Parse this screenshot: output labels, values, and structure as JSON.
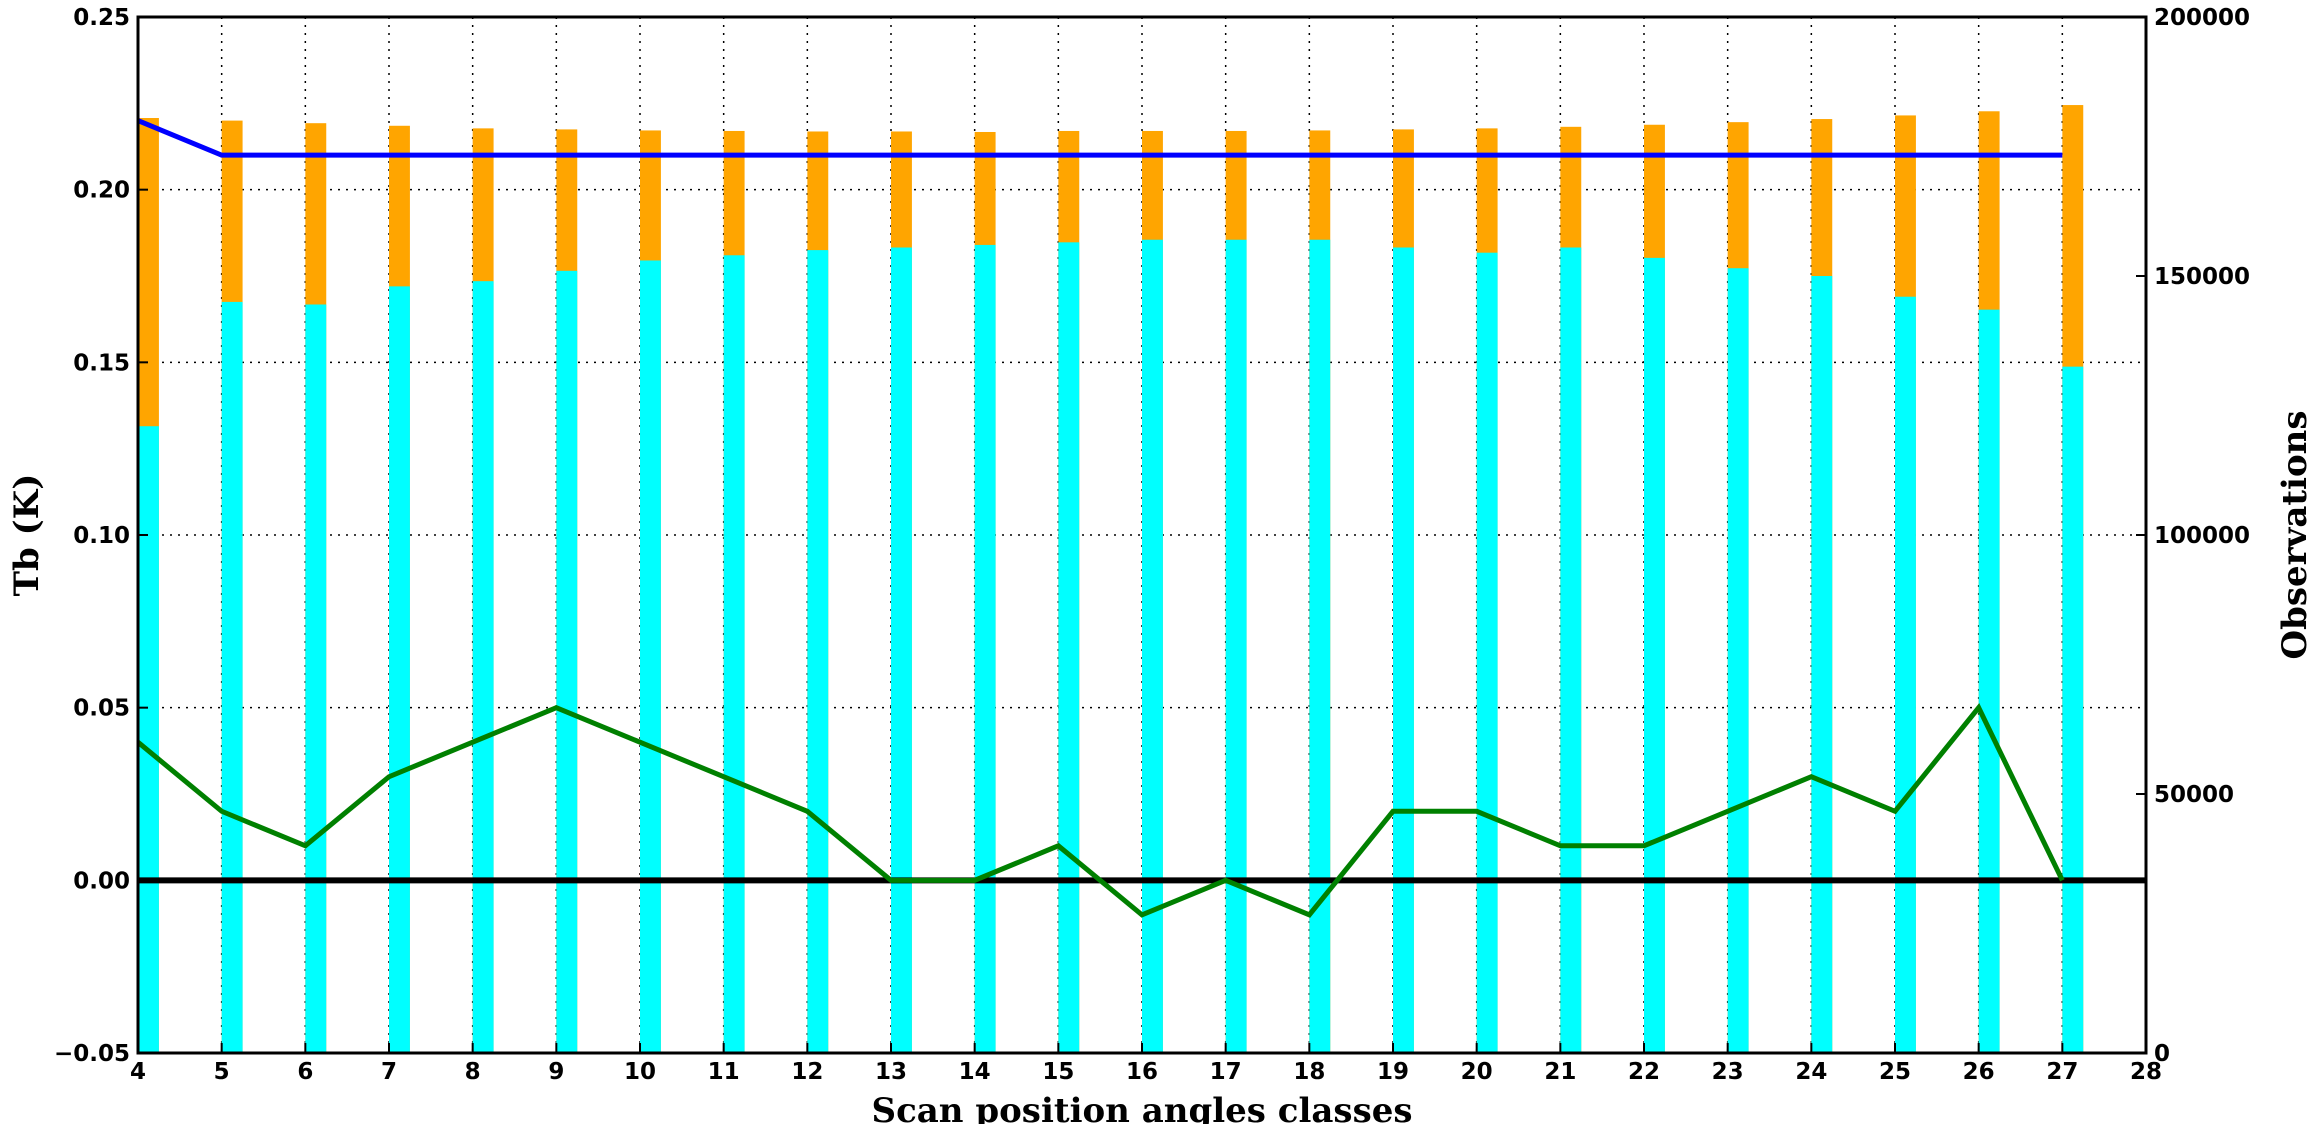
{
  "chart_data": {
    "type": "bar",
    "title": "",
    "xlabel": "Scan position angles classes",
    "ylabel_left": "Tb (K)",
    "ylabel_right": "Observations",
    "xlim": [
      4,
      28
    ],
    "ylim_left": [
      -0.05,
      0.25
    ],
    "ylim_right": [
      0,
      200000
    ],
    "x_ticks": [
      4,
      5,
      6,
      7,
      8,
      9,
      10,
      11,
      12,
      13,
      14,
      15,
      16,
      17,
      18,
      19,
      20,
      21,
      22,
      23,
      24,
      25,
      26,
      27,
      28
    ],
    "y_ticks_left": [
      "−0.05",
      "0.00",
      "0.05",
      "0.10",
      "0.15",
      "0.20",
      "0.25"
    ],
    "y_ticks_right": [
      "0",
      "50000",
      "100000",
      "150000",
      "200000"
    ],
    "grid": true,
    "categories": [
      4,
      5,
      6,
      7,
      8,
      9,
      10,
      11,
      12,
      13,
      14,
      15,
      16,
      17,
      18,
      19,
      20,
      21,
      22,
      23,
      24,
      25,
      26,
      27
    ],
    "series": [
      {
        "kind": "bar",
        "axis": "right",
        "color": "#FFA500",
        "values": [
          180500,
          180000,
          179500,
          179000,
          178500,
          178300,
          178100,
          178000,
          177900,
          177900,
          177800,
          178000,
          178000,
          178000,
          178100,
          178300,
          178500,
          178800,
          179200,
          179700,
          180300,
          181000,
          181800,
          183000
        ]
      },
      {
        "kind": "bar",
        "axis": "right",
        "color": "#00FFFF",
        "values": [
          121000,
          145000,
          144500,
          148000,
          149000,
          151000,
          153000,
          154000,
          155000,
          155500,
          156000,
          156500,
          157000,
          157000,
          157000,
          155500,
          154500,
          155500,
          153500,
          151500,
          150000,
          146000,
          143500,
          132500
        ]
      },
      {
        "kind": "line",
        "axis": "left",
        "color": "#0000FF",
        "values": [
          0.22,
          0.21,
          0.21,
          0.21,
          0.21,
          0.21,
          0.21,
          0.21,
          0.21,
          0.21,
          0.21,
          0.21,
          0.21,
          0.21,
          0.21,
          0.21,
          0.21,
          0.21,
          0.21,
          0.21,
          0.21,
          0.21,
          0.21,
          0.21
        ]
      },
      {
        "kind": "line",
        "axis": "left",
        "color": "#008000",
        "values": [
          0.04,
          0.02,
          0.01,
          0.03,
          0.04,
          0.05,
          0.04,
          0.03,
          0.02,
          0.0,
          0.0,
          0.01,
          -0.01,
          0.0,
          -0.01,
          0.02,
          0.02,
          0.01,
          0.01,
          0.02,
          0.03,
          0.02,
          0.05,
          0.0
        ]
      }
    ],
    "reference_line": {
      "axis": "left",
      "value": 0.0,
      "color": "#000000"
    }
  }
}
